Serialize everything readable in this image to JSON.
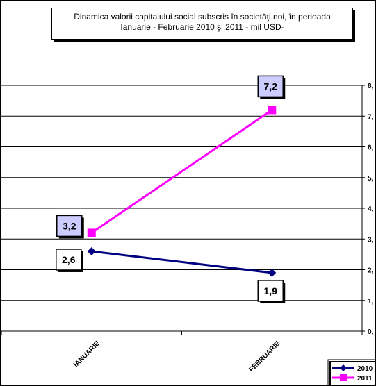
{
  "chart_data": {
    "type": "line",
    "title": "Dinamica  valorii capitalului social subscris în societăţi noi,  în perioada\nIanuarie - Februarie 2010 şi 2011  - mil  USD-",
    "categories": [
      "IANUARIE",
      "FEBRUARIE"
    ],
    "y_ticks": [
      "0,",
      "1,",
      "2,",
      "3,",
      "4,",
      "5,",
      "6,",
      "7,",
      "8,"
    ],
    "ylim": [
      0,
      8
    ],
    "grid": true,
    "legend_position": "bottom-right",
    "series": [
      {
        "name": "2010",
        "values": [
          2.6,
          1.9
        ],
        "data_labels": [
          "2,6",
          "1,9"
        ],
        "color": "#000080",
        "marker": "diamond",
        "label_fill": "#ffffff"
      },
      {
        "name": "2011",
        "values": [
          3.2,
          7.2
        ],
        "data_labels": [
          "3,2",
          "7,2"
        ],
        "color": "#ff00ff",
        "marker": "square",
        "label_fill": "#ccccff"
      }
    ]
  }
}
